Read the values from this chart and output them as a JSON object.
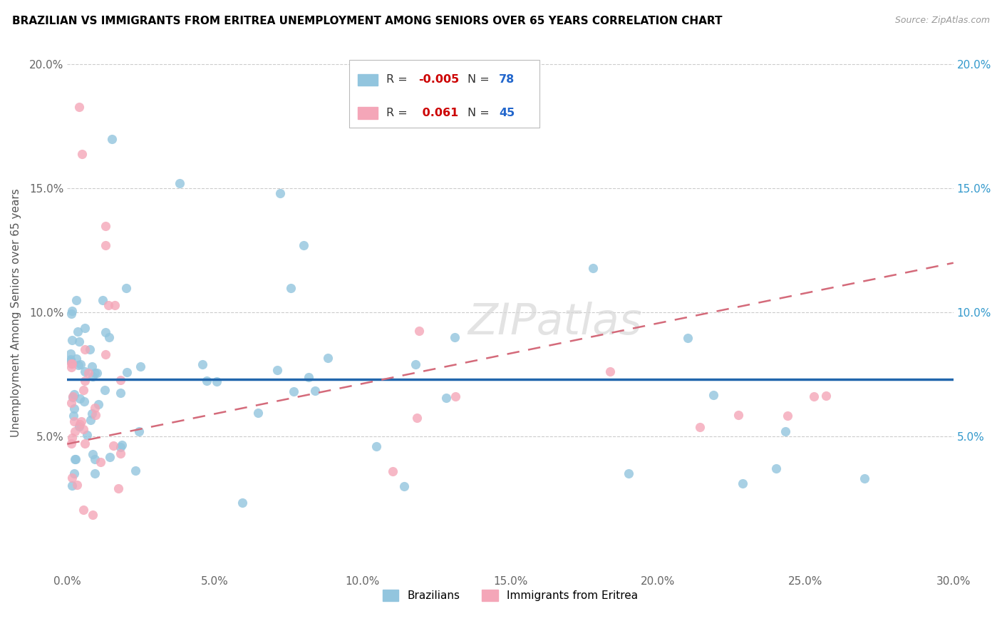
{
  "title": "BRAZILIAN VS IMMIGRANTS FROM ERITREA UNEMPLOYMENT AMONG SENIORS OVER 65 YEARS CORRELATION CHART",
  "source": "Source: ZipAtlas.com",
  "ylabel": "Unemployment Among Seniors over 65 years",
  "xlim": [
    0.0,
    0.3
  ],
  "ylim": [
    -0.005,
    0.205
  ],
  "xtick_labels": [
    "0.0%",
    "5.0%",
    "10.0%",
    "15.0%",
    "20.0%",
    "25.0%",
    "30.0%"
  ],
  "xtick_values": [
    0.0,
    0.05,
    0.1,
    0.15,
    0.2,
    0.25,
    0.3
  ],
  "ytick_labels": [
    "5.0%",
    "10.0%",
    "15.0%",
    "20.0%"
  ],
  "ytick_values": [
    0.05,
    0.1,
    0.15,
    0.2
  ],
  "legend_r1": "-0.005",
  "legend_n1": "78",
  "legend_r2": "0.061",
  "legend_n2": "45",
  "blue_color": "#92c5de",
  "pink_color": "#f4a6b8",
  "blue_line_color": "#2166ac",
  "pink_line_color": "#d46a7a",
  "watermark": "ZIPatlas"
}
